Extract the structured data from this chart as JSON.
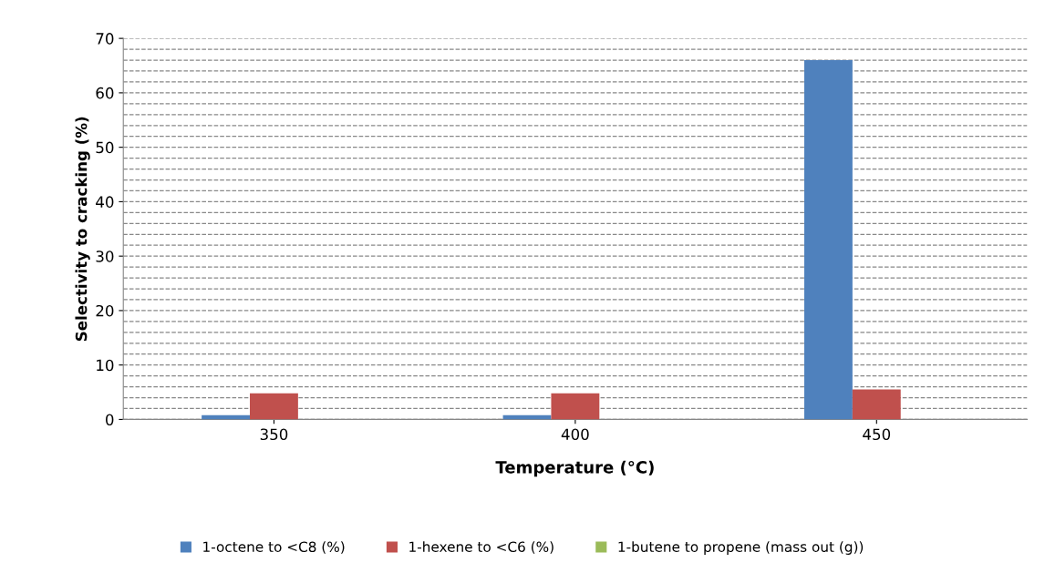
{
  "chart_data": {
    "type": "bar",
    "xlabel": "Temperature (°C)",
    "ylabel": "Selectivity to cracking (%)",
    "categories": [
      "350",
      "400",
      "450"
    ],
    "series": [
      {
        "name": "1-octene to <C8 (%)",
        "color": "#4f81bd",
        "values": [
          0.8,
          0.8,
          66
        ]
      },
      {
        "name": "1-hexene to <C6 (%)",
        "color": "#c0504d",
        "values": [
          4.8,
          4.8,
          5.5
        ]
      },
      {
        "name": "1-butene to propene (mass out (g))",
        "color": "#9bbb59",
        "values": [
          0,
          0,
          0
        ]
      }
    ],
    "ylim": [
      0,
      70
    ],
    "yticks": [
      0,
      {
        "value": 2,
        "label": null
      },
      {
        "value": 4,
        "label": null
      },
      {
        "value": 6,
        "label": null
      },
      {
        "value": 8,
        "label": null
      },
      10,
      {
        "value": 12,
        "label": null
      },
      {
        "value": 14,
        "label": null
      },
      {
        "value": 16,
        "label": null
      },
      {
        "value": 18,
        "label": null
      },
      20,
      {
        "value": 22,
        "label": null
      },
      {
        "value": 24,
        "label": null
      },
      {
        "value": 26,
        "label": null
      },
      {
        "value": 28,
        "label": null
      },
      30,
      {
        "value": 32,
        "label": null
      },
      {
        "value": 34,
        "label": null
      },
      {
        "value": 36,
        "label": null
      },
      {
        "value": 38,
        "label": null
      },
      40,
      {
        "value": 42,
        "label": null
      },
      {
        "value": 44,
        "label": null
      },
      {
        "value": 46,
        "label": null
      },
      {
        "value": 48,
        "label": null
      },
      50,
      {
        "value": 52,
        "label": null
      },
      {
        "value": 54,
        "label": null
      },
      {
        "value": 56,
        "label": null
      },
      {
        "value": 58,
        "label": null
      },
      60,
      {
        "value": 62,
        "label": null
      },
      {
        "value": 64,
        "label": null
      },
      {
        "value": 66,
        "label": null
      },
      {
        "value": 68,
        "label": null
      },
      70
    ],
    "grid": "y",
    "legend": "bottom",
    "line_style": "dashed"
  }
}
